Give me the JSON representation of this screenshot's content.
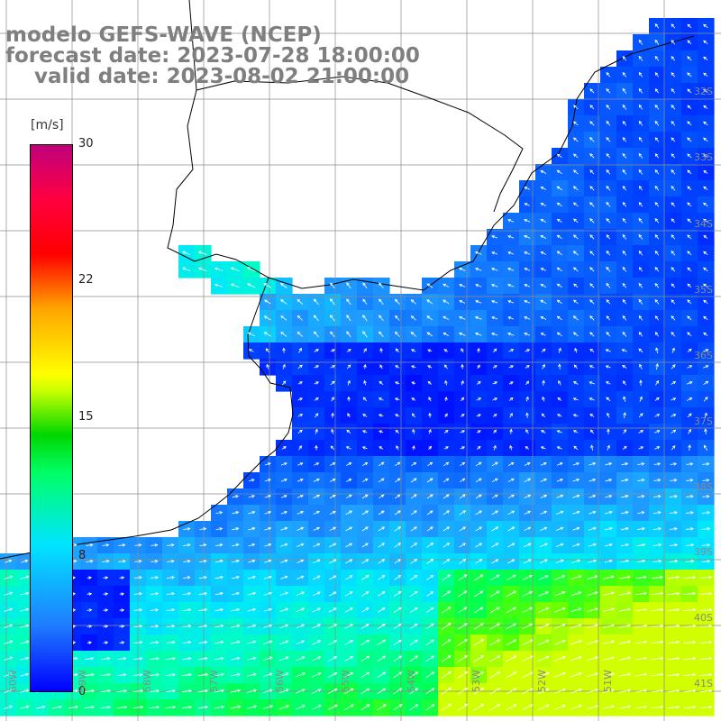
{
  "header": {
    "line1": "modelo GEFS-WAVE (NCEP)",
    "line2": "forecast date: 2023-07-28 18:00:00",
    "line3": "    valid date: 2023-08-02 21:00:00"
  },
  "colorbar": {
    "unit": "[m/s]",
    "ticks": [
      "30",
      "22",
      "15",
      "8",
      "0"
    ],
    "colors": [
      "#0000ff",
      "#00e5ff",
      "#00d700",
      "#ffff00",
      "#ff0000",
      "#c0007c"
    ]
  },
  "lat_labels": [
    "32S",
    "33S",
    "34S",
    "35S",
    "36S",
    "37S",
    "38S",
    "39S",
    "40S",
    "41S"
  ],
  "lon_labels": [
    "60W",
    "59W",
    "58W",
    "57W",
    "56W",
    "55W",
    "54W",
    "53W",
    "52W",
    "51W"
  ],
  "colors": {
    "land": "#ffffff",
    "grid": "#8c8c8c",
    "coast": "#000000",
    "arrow": "#ffffff"
  }
}
